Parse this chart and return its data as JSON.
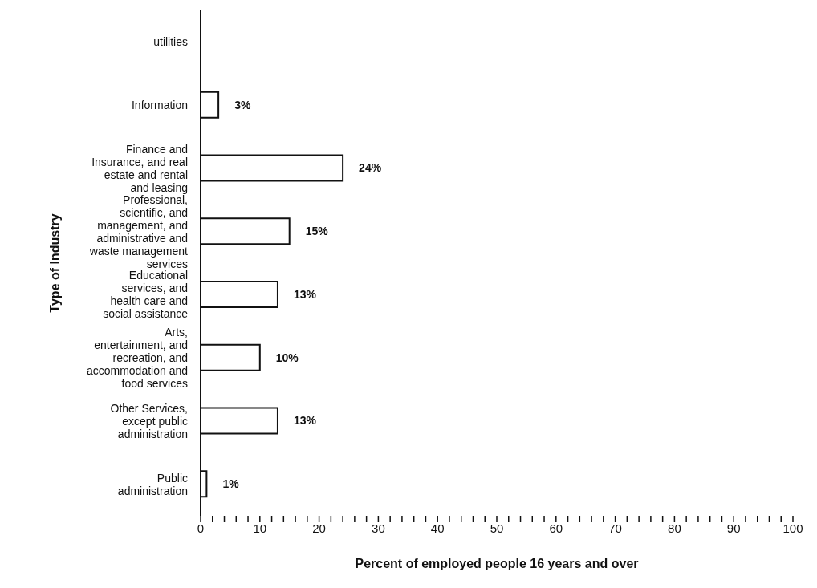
{
  "chart_data": {
    "type": "bar",
    "orientation": "horizontal",
    "xlabel": "Percent of employed people 16 years and over",
    "ylabel": "Type of Industry",
    "categories": [
      "utilities",
      "Information",
      "Finance and Insurance, and real estate and rental and leasing",
      "Professional, scientific, and management, and administrative and waste management services",
      "Educational services, and health care and social assistance",
      "Arts, entertainment, and recreation, and accommodation and food services",
      "Other Services, except public administration",
      "Public administration"
    ],
    "values": [
      null,
      3,
      24,
      15,
      13,
      10,
      13,
      1
    ],
    "value_labels": [
      null,
      "3%",
      "24%",
      "15%",
      "13%",
      "10%",
      "13%",
      "1%"
    ],
    "color": "#ffffff",
    "xlim": [
      0,
      100
    ],
    "xticks": [
      0,
      {
        "value": 2,
        "label": null
      },
      {
        "value": 4,
        "label": null
      },
      {
        "value": 6,
        "label": null
      },
      {
        "value": 8,
        "label": null
      },
      10,
      {
        "value": 12,
        "label": null
      },
      {
        "value": 14,
        "label": null
      },
      {
        "value": 16,
        "label": null
      },
      {
        "value": 18,
        "label": null
      },
      20,
      {
        "value": 22,
        "label": null
      },
      {
        "value": 24,
        "label": null
      },
      {
        "value": 26,
        "label": null
      },
      {
        "value": 28,
        "label": null
      },
      30,
      {
        "value": 32,
        "label": null
      },
      {
        "value": 34,
        "label": null
      },
      {
        "value": 36,
        "label": null
      },
      {
        "value": 38,
        "label": null
      },
      40,
      {
        "value": 42,
        "label": null
      },
      {
        "value": 44,
        "label": null
      },
      {
        "value": 46,
        "label": null
      },
      {
        "value": 48,
        "label": null
      },
      50,
      {
        "value": 52,
        "label": null
      },
      {
        "value": 54,
        "label": null
      },
      {
        "value": 56,
        "label": null
      },
      {
        "value": 58,
        "label": null
      },
      60,
      {
        "value": 62,
        "label": null
      },
      {
        "value": 64,
        "label": null
      },
      {
        "value": 66,
        "label": null
      },
      {
        "value": 68,
        "label": null
      },
      70,
      {
        "value": 72,
        "label": null
      },
      {
        "value": 74,
        "label": null
      },
      {
        "value": 76,
        "label": null
      },
      {
        "value": 78,
        "label": null
      },
      80,
      {
        "value": 82,
        "label": null
      },
      {
        "value": 84,
        "label": null
      },
      {
        "value": 86,
        "label": null
      },
      {
        "value": 88,
        "label": null
      },
      90,
      {
        "value": 92,
        "label": null
      },
      {
        "value": 94,
        "label": null
      },
      {
        "value": 96,
        "label": null
      },
      {
        "value": 98,
        "label": null
      },
      100
    ],
    "grid": false,
    "legend": false
  }
}
